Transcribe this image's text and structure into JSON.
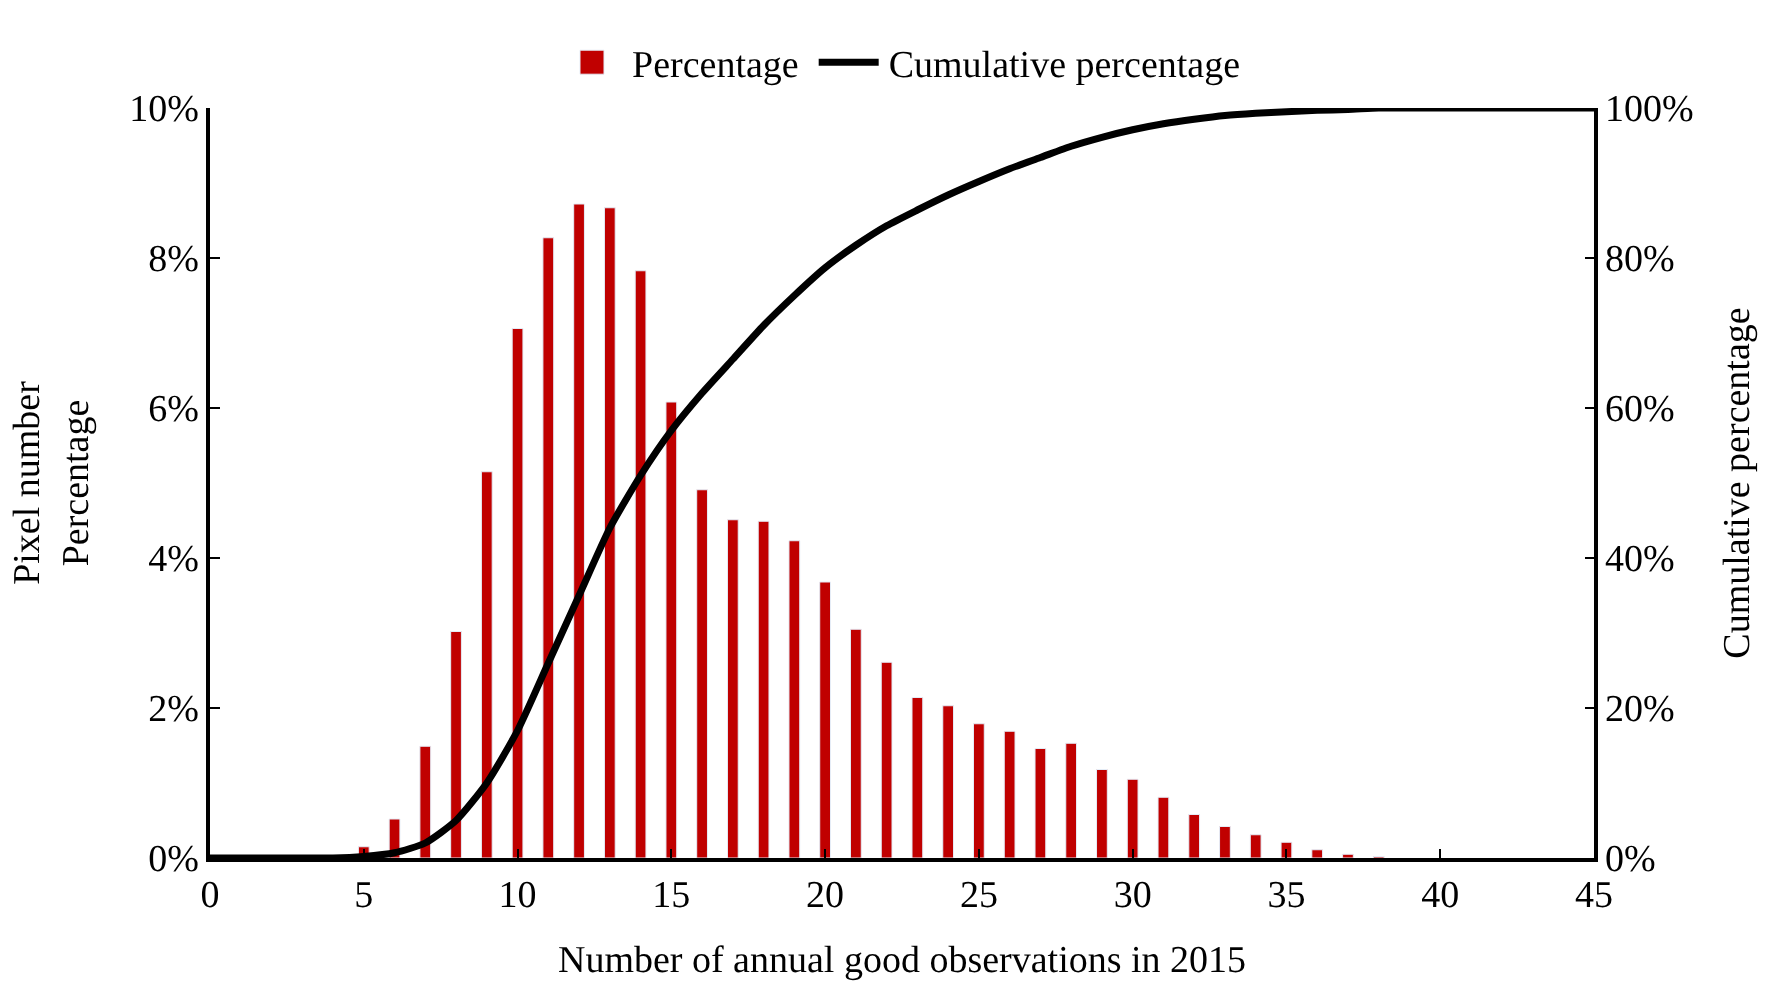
{
  "chart_data": {
    "type": "bar",
    "xlabel": "Number of annual good observations in 2015",
    "ylabel": "Pixel number\nPercentage",
    "y2label": "Cumulative percentage",
    "xlim": [
      0,
      45
    ],
    "xticks": [
      0,
      5,
      10,
      15,
      20,
      25,
      30,
      35,
      40,
      45
    ],
    "ylim": [
      0,
      10
    ],
    "yticks": [
      {
        "value": 0,
        "label": "0%"
      },
      {
        "value": 2,
        "label": "2%"
      },
      {
        "value": 4,
        "label": "4%"
      },
      {
        "value": 6,
        "label": "6%"
      },
      {
        "value": 8,
        "label": "8%"
      },
      {
        "value": 10,
        "label": "10%"
      }
    ],
    "y2lim": [
      0,
      100
    ],
    "y2ticks": [
      {
        "value": 0,
        "label": "0%"
      },
      {
        "value": 20,
        "label": "20%"
      },
      {
        "value": 40,
        "label": "40%"
      },
      {
        "value": 60,
        "label": "60%"
      },
      {
        "value": 80,
        "label": "80%"
      },
      {
        "value": 100,
        "label": "100%"
      }
    ],
    "grid": false,
    "legend": "top",
    "series": [
      {
        "name": "Percentage",
        "color": "#c00000",
        "x": [
          5,
          6,
          7,
          8,
          9,
          10,
          11,
          12,
          13,
          14,
          15,
          16,
          17,
          18,
          19,
          20,
          21,
          22,
          23,
          24,
          25,
          26,
          27,
          28,
          29,
          30,
          31,
          32,
          33,
          34,
          35,
          36,
          37,
          38
        ],
        "values": [
          0.15,
          0.52,
          1.49,
          3.02,
          5.15,
          7.06,
          8.27,
          8.72,
          8.67,
          7.83,
          6.08,
          4.91,
          4.51,
          4.49,
          4.23,
          3.68,
          3.05,
          2.61,
          2.14,
          2.03,
          1.79,
          1.69,
          1.46,
          1.53,
          1.18,
          1.05,
          0.81,
          0.58,
          0.42,
          0.31,
          0.21,
          0.11,
          0.05,
          0.02
        ]
      },
      {
        "name": "Cumulative percentage",
        "type": "line",
        "axis": "y2",
        "color": "#000000",
        "line_style": "solid",
        "marker": "none",
        "x": [
          0,
          1,
          2,
          3,
          4,
          5,
          6,
          7,
          8,
          9,
          10,
          11,
          12,
          13,
          14,
          15,
          16,
          17,
          18,
          19,
          20,
          21,
          22,
          23,
          24,
          25,
          26,
          27,
          28,
          29,
          30,
          31,
          32,
          33,
          34,
          35,
          36,
          37,
          38,
          39,
          40,
          41,
          42,
          43,
          44,
          45
        ],
        "values": [
          0,
          0,
          0,
          0,
          0,
          0.2,
          0.7,
          2,
          5,
          10,
          17,
          26,
          35,
          44,
          51,
          57,
          62,
          66.5,
          71,
          75,
          78.7,
          81.7,
          84.3,
          86.4,
          88.4,
          90.2,
          91.9,
          93.4,
          94.9,
          96.1,
          97.1,
          97.9,
          98.5,
          99,
          99.3,
          99.5,
          99.7,
          99.8,
          100,
          100,
          100,
          100,
          100,
          100,
          100,
          100
        ]
      }
    ]
  }
}
